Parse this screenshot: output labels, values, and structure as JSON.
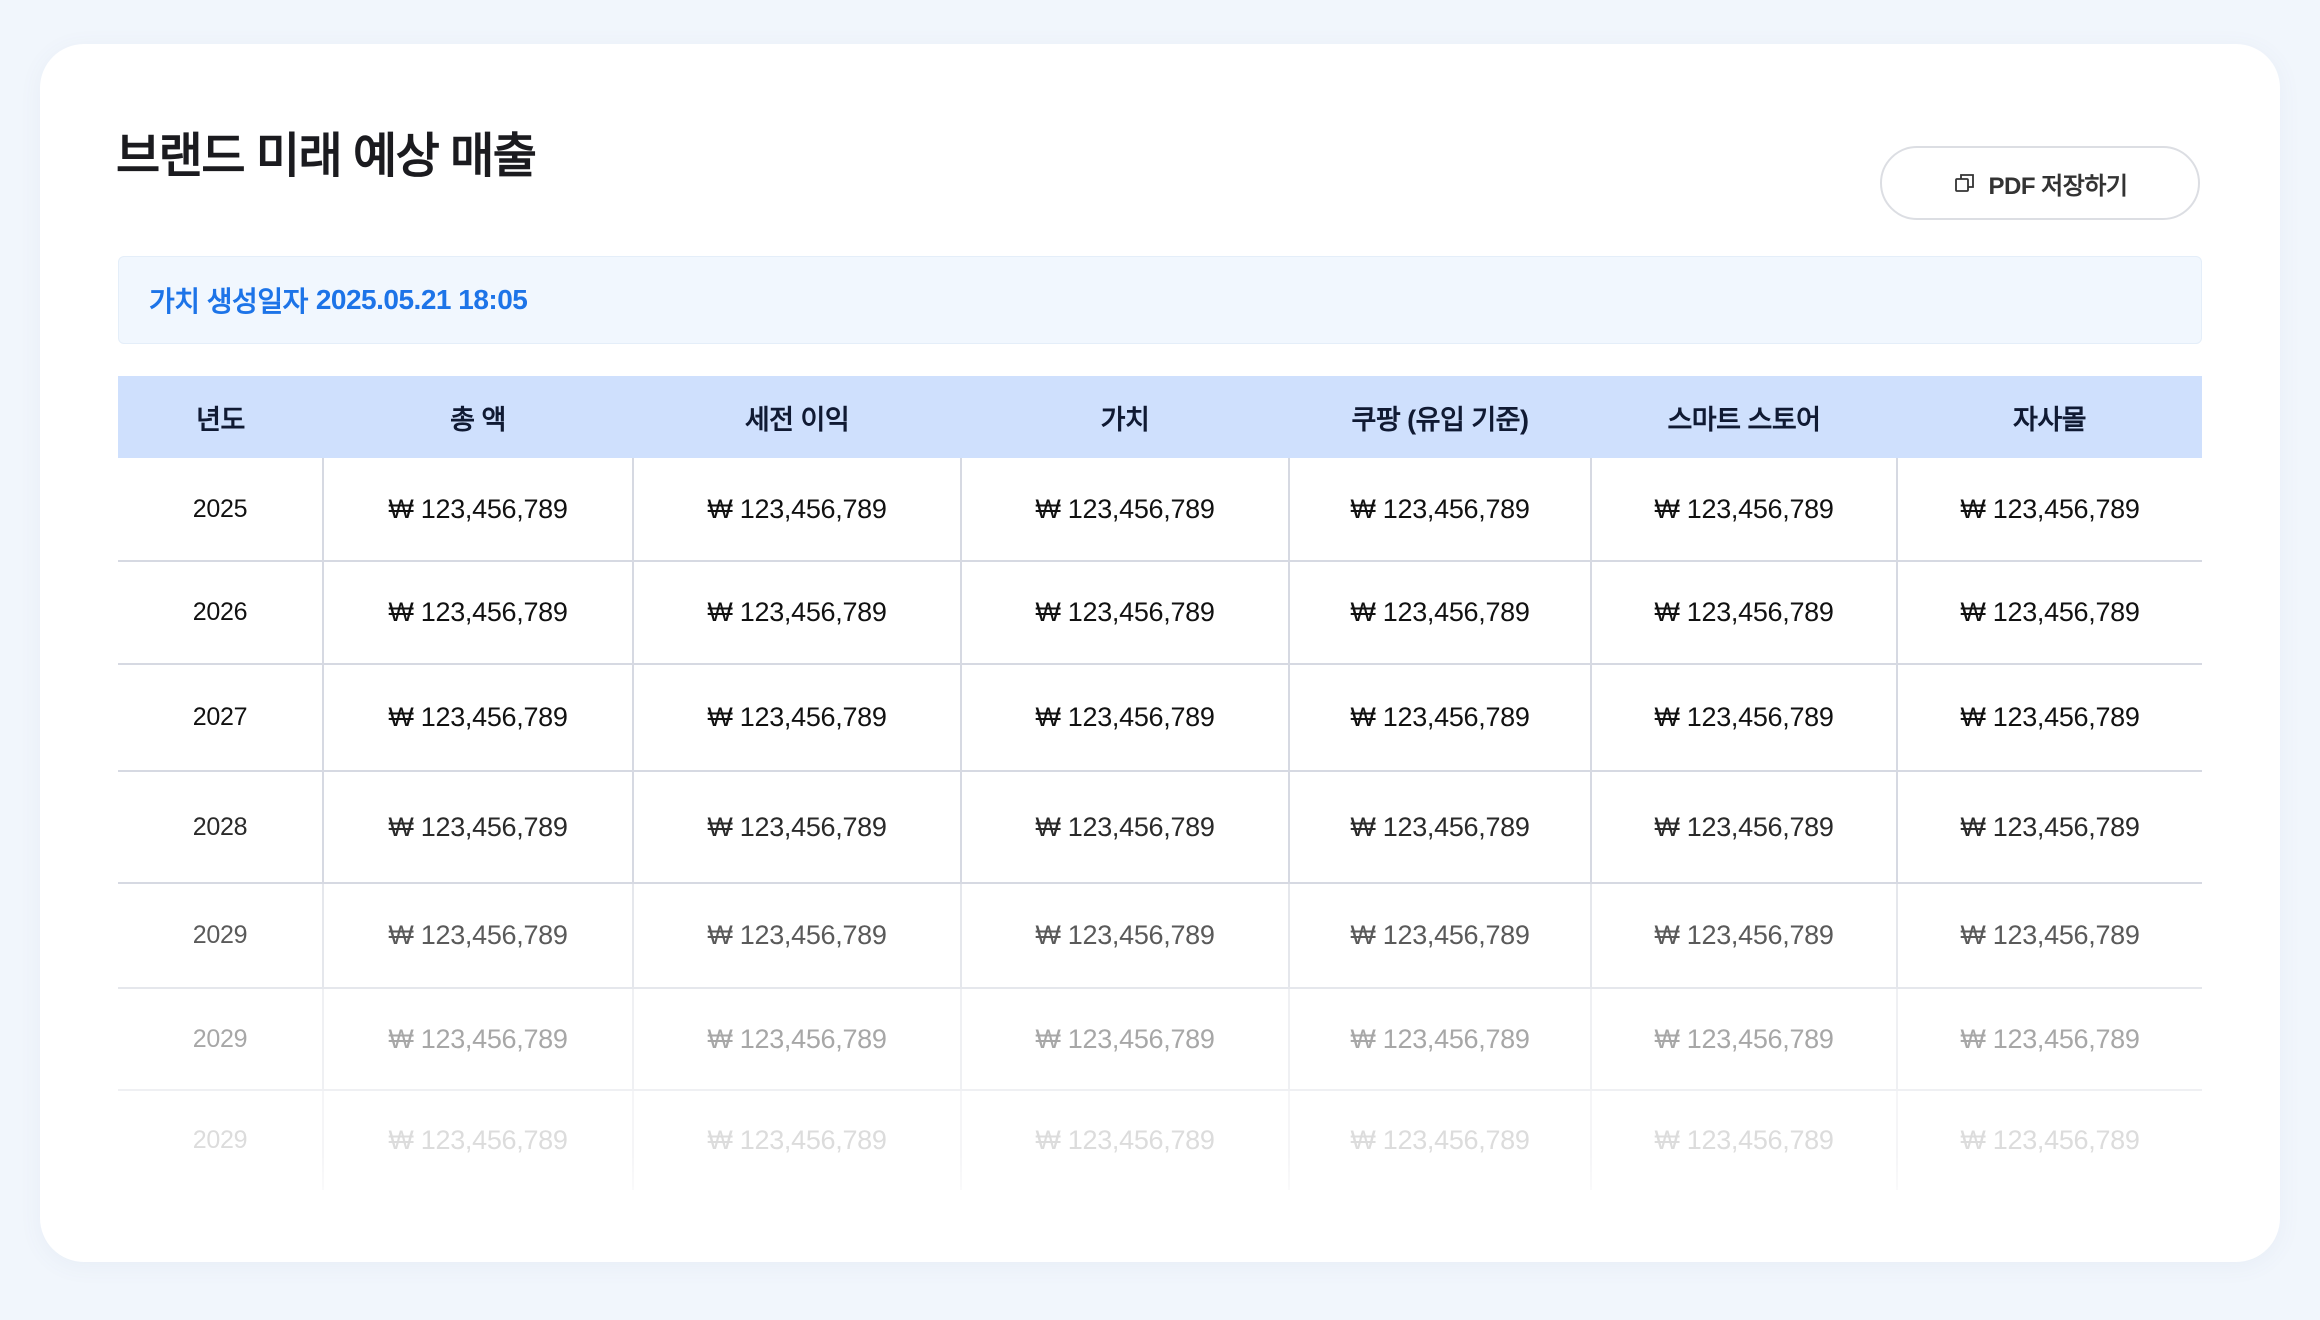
{
  "page": {
    "title": "브랜드 미래 예상 매출",
    "pdf_button_label": "PDF 저장하기",
    "pdf_icon": "copy-icon"
  },
  "info": {
    "label": "가치 생성일자",
    "datetime": "2025.05.21 18:05"
  },
  "table": {
    "headers": [
      "년도",
      "총 액",
      "세전 이익",
      "가치",
      "쿠팡 (유입 기준)",
      "스마트 스토어",
      "자사몰"
    ],
    "rows": [
      {
        "year": "2025",
        "cells": [
          "₩ 123,456,789",
          "₩ 123,456,789",
          "₩ 123,456,789",
          "₩ 123,456,789",
          "₩ 123,456,789",
          "₩ 123,456,789"
        ]
      },
      {
        "year": "2026",
        "cells": [
          "₩ 123,456,789",
          "₩ 123,456,789",
          "₩ 123,456,789",
          "₩ 123,456,789",
          "₩ 123,456,789",
          "₩ 123,456,789"
        ]
      },
      {
        "year": "2027",
        "cells": [
          "₩ 123,456,789",
          "₩ 123,456,789",
          "₩ 123,456,789",
          "₩ 123,456,789",
          "₩ 123,456,789",
          "₩ 123,456,789"
        ]
      },
      {
        "year": "2028",
        "cells": [
          "₩ 123,456,789",
          "₩ 123,456,789",
          "₩ 123,456,789",
          "₩ 123,456,789",
          "₩ 123,456,789",
          "₩ 123,456,789"
        ]
      },
      {
        "year": "2029",
        "cells": [
          "₩ 123,456,789",
          "₩ 123,456,789",
          "₩ 123,456,789",
          "₩ 123,456,789",
          "₩ 123,456,789",
          "₩ 123,456,789"
        ]
      },
      {
        "year": "2029",
        "cells": [
          "₩ 123,456,789",
          "₩ 123,456,789",
          "₩ 123,456,789",
          "₩ 123,456,789",
          "₩ 123,456,789",
          "₩ 123,456,789"
        ]
      },
      {
        "year": "2029",
        "cells": [
          "₩ 123,456,789",
          "₩ 123,456,789",
          "₩ 123,456,789",
          "₩ 123,456,789",
          "₩ 123,456,789",
          "₩ 123,456,789"
        ]
      }
    ]
  },
  "colors": {
    "accent": "#1d74e8",
    "header_bg": "#cfe0fd",
    "info_bg": "#f1f7fe",
    "page_bg": "#f1f6fc"
  }
}
